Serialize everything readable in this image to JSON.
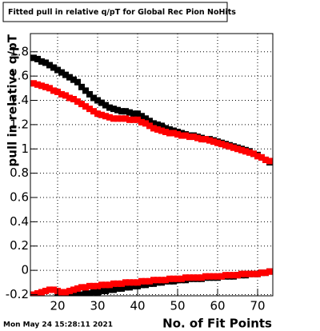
{
  "chart_data": {
    "type": "scatter",
    "title": "Fitted pull in relative q/pT for Global Rec Pion NoHits",
    "x_label": "No. of Fit Points",
    "y_label": "pull in relative q/pT",
    "footnote": "Mon May 24 15:28:11 2021",
    "xlim": [
      13.2,
      73.8
    ],
    "ylim": [
      -0.21,
      1.95
    ],
    "xticks": [
      20,
      30,
      40,
      50,
      60,
      70
    ],
    "yticks": [
      -0.2,
      0,
      0.2,
      0.4,
      0.6,
      0.8,
      1,
      1.2,
      1.4,
      1.6,
      1.8
    ],
    "grid": true,
    "x": [
      14,
      15,
      16,
      17,
      18,
      19,
      20,
      21,
      22,
      23,
      24,
      25,
      26,
      27,
      28,
      29,
      30,
      31,
      32,
      33,
      34,
      35,
      36,
      37,
      38,
      39,
      40,
      41,
      42,
      43,
      44,
      45,
      46,
      47,
      48,
      49,
      50,
      51,
      52,
      53,
      54,
      55,
      56,
      57,
      58,
      59,
      60,
      61,
      62,
      63,
      64,
      65,
      66,
      67,
      68,
      69,
      70,
      71,
      72,
      73
    ],
    "series": [
      {
        "color": "#000000",
        "values": [
          1.75,
          1.74,
          1.72,
          1.71,
          1.69,
          1.67,
          1.65,
          1.63,
          1.61,
          1.59,
          1.57,
          1.55,
          1.51,
          1.48,
          1.45,
          1.42,
          1.4,
          1.38,
          1.36,
          1.34,
          1.33,
          1.32,
          1.31,
          1.31,
          1.3,
          1.29,
          1.29,
          1.27,
          1.25,
          1.23,
          1.21,
          1.2,
          1.19,
          1.17,
          1.16,
          1.15,
          1.14,
          1.13,
          1.12,
          1.11,
          1.11,
          1.1,
          1.09,
          1.08,
          1.08,
          1.07,
          1.06,
          1.05,
          1.04,
          1.03,
          1.02,
          1.01,
          1.0,
          0.99,
          0.98,
          0.96,
          0.95,
          0.93,
          0.91,
          0.89
        ]
      },
      {
        "color": "#ff0000",
        "values": [
          1.54,
          1.53,
          1.52,
          1.51,
          1.5,
          1.48,
          1.47,
          1.45,
          1.44,
          1.42,
          1.41,
          1.39,
          1.37,
          1.35,
          1.33,
          1.31,
          1.29,
          1.28,
          1.27,
          1.26,
          1.25,
          1.25,
          1.25,
          1.25,
          1.24,
          1.24,
          1.24,
          1.22,
          1.21,
          1.19,
          1.17,
          1.16,
          1.15,
          1.14,
          1.13,
          1.13,
          1.12,
          1.11,
          1.11,
          1.1,
          1.1,
          1.09,
          1.08,
          1.08,
          1.07,
          1.06,
          1.05,
          1.04,
          1.03,
          1.02,
          1.01,
          1.0,
          0.99,
          0.98,
          0.97,
          0.96,
          0.94,
          0.93,
          0.91,
          0.9
        ]
      },
      {
        "color": "#000000",
        "values": [
          null,
          null,
          null,
          null,
          null,
          null,
          -0.21,
          -0.21,
          -0.21,
          -0.21,
          -0.21,
          -0.2,
          -0.2,
          -0.19,
          -0.19,
          -0.18,
          -0.18,
          -0.17,
          -0.17,
          -0.16,
          -0.16,
          -0.15,
          -0.15,
          -0.14,
          -0.14,
          -0.13,
          -0.13,
          -0.12,
          -0.12,
          -0.11,
          -0.11,
          -0.1,
          -0.1,
          -0.09,
          -0.09,
          -0.09,
          -0.08,
          -0.08,
          -0.08,
          -0.07,
          -0.07,
          -0.07,
          -0.07,
          -0.06,
          -0.06,
          -0.06,
          -0.06,
          -0.05,
          -0.05,
          -0.05,
          -0.05,
          -0.04,
          -0.04,
          -0.04,
          -0.03,
          -0.03,
          -0.03,
          -0.02,
          -0.02,
          -0.01
        ]
      },
      {
        "color": "#ff0000",
        "values": [
          -0.2,
          -0.19,
          -0.18,
          -0.17,
          -0.16,
          -0.16,
          -0.17,
          -0.18,
          -0.18,
          -0.17,
          -0.16,
          -0.15,
          -0.14,
          -0.14,
          -0.13,
          -0.13,
          -0.13,
          -0.12,
          -0.12,
          -0.12,
          -0.11,
          -0.11,
          -0.11,
          -0.1,
          -0.1,
          -0.1,
          -0.1,
          -0.09,
          -0.09,
          -0.09,
          -0.08,
          -0.08,
          -0.08,
          -0.08,
          -0.07,
          -0.07,
          -0.07,
          -0.07,
          -0.06,
          -0.06,
          -0.06,
          -0.06,
          -0.06,
          -0.05,
          -0.05,
          -0.05,
          -0.05,
          -0.05,
          -0.04,
          -0.04,
          -0.04,
          -0.04,
          -0.03,
          -0.03,
          -0.03,
          -0.03,
          -0.03,
          -0.02,
          -0.02,
          -0.01
        ]
      }
    ]
  }
}
